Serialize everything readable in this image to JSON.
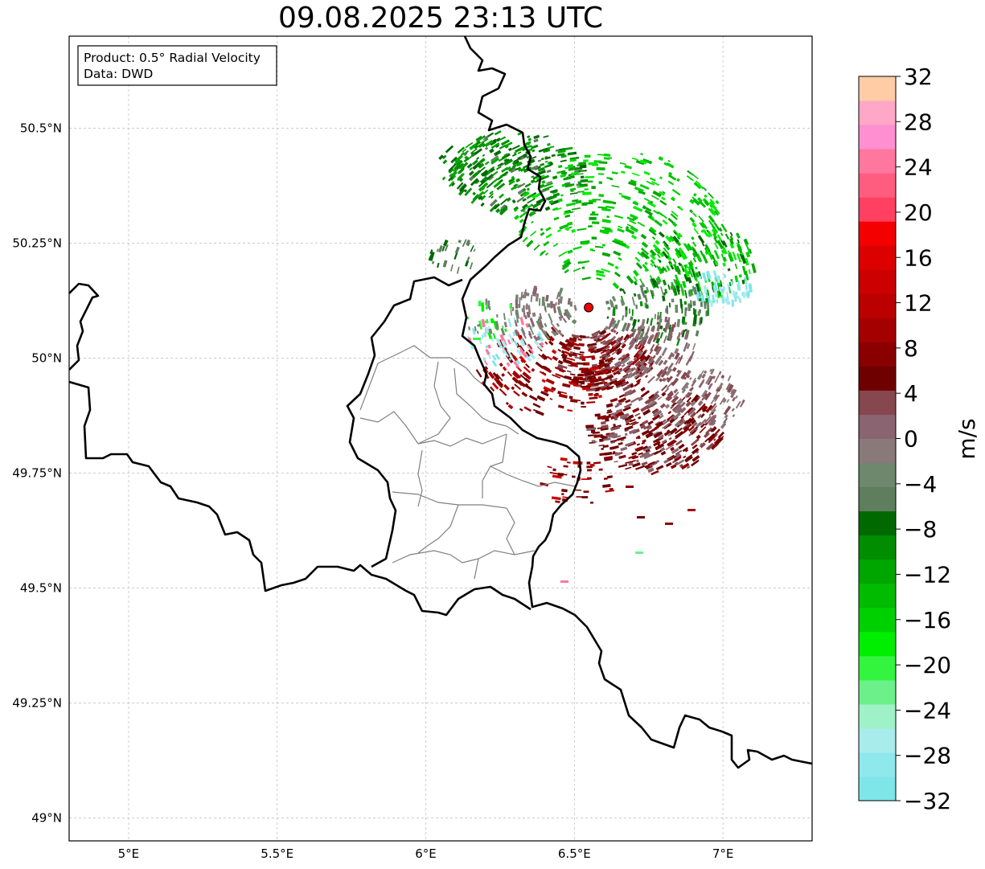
{
  "title": "09.08.2025 23:13 UTC",
  "info": {
    "product": "Product: 0.5° Radial Velocity",
    "source": "Data: DWD"
  },
  "map": {
    "lon_range": [
      4.8,
      7.3
    ],
    "lat_range": [
      48.95,
      50.7
    ],
    "lon_ticks": [
      {
        "value": 5.0,
        "label": "5°E"
      },
      {
        "value": 5.5,
        "label": "5.5°E"
      },
      {
        "value": 6.0,
        "label": "6°E"
      },
      {
        "value": 6.5,
        "label": "6.5°E"
      },
      {
        "value": 7.0,
        "label": "7°E"
      }
    ],
    "lat_ticks": [
      {
        "value": 49.0,
        "label": "49°N"
      },
      {
        "value": 49.25,
        "label": "49.25°N"
      },
      {
        "value": 49.5,
        "label": "49.5°N"
      },
      {
        "value": 49.75,
        "label": "49.75°N"
      },
      {
        "value": 50.0,
        "label": "50°N"
      },
      {
        "value": 50.25,
        "label": "50.25°N"
      },
      {
        "value": 50.5,
        "label": "50.5°N"
      }
    ],
    "radar_site": {
      "lon": 6.548,
      "lat": 50.11
    },
    "gridlines": true
  },
  "colorbar": {
    "label": "m/s",
    "min": -32,
    "max": 32,
    "ticks": [
      "32",
      "28",
      "24",
      "20",
      "16",
      "12",
      "8",
      "4",
      "0",
      "−4",
      "−8",
      "−12",
      "−16",
      "−20",
      "−24",
      "−28",
      "−32"
    ],
    "colors": [
      "#7ee5e8",
      "#8fe8ec",
      "#a8ecec",
      "#9ff2c8",
      "#6cf08a",
      "#33f53f",
      "#00ee00",
      "#00d000",
      "#00bb00",
      "#00a600",
      "#008d00",
      "#006a00",
      "#5e7e5e",
      "#6d886c",
      "#897a79",
      "#8a6470",
      "#86474e",
      "#6e0000",
      "#8a0000",
      "#a40000",
      "#bb0000",
      "#cc0000",
      "#dd0000",
      "#f50000",
      "#ff4060",
      "#ff5d80",
      "#ff779f",
      "#ff8fd0",
      "#ffa7c6",
      "#ffcca6"
    ]
  },
  "colors": {
    "border": "#000000",
    "district": "#808080",
    "grid": "#bbbbbb",
    "site_marker": "#ee0000"
  }
}
